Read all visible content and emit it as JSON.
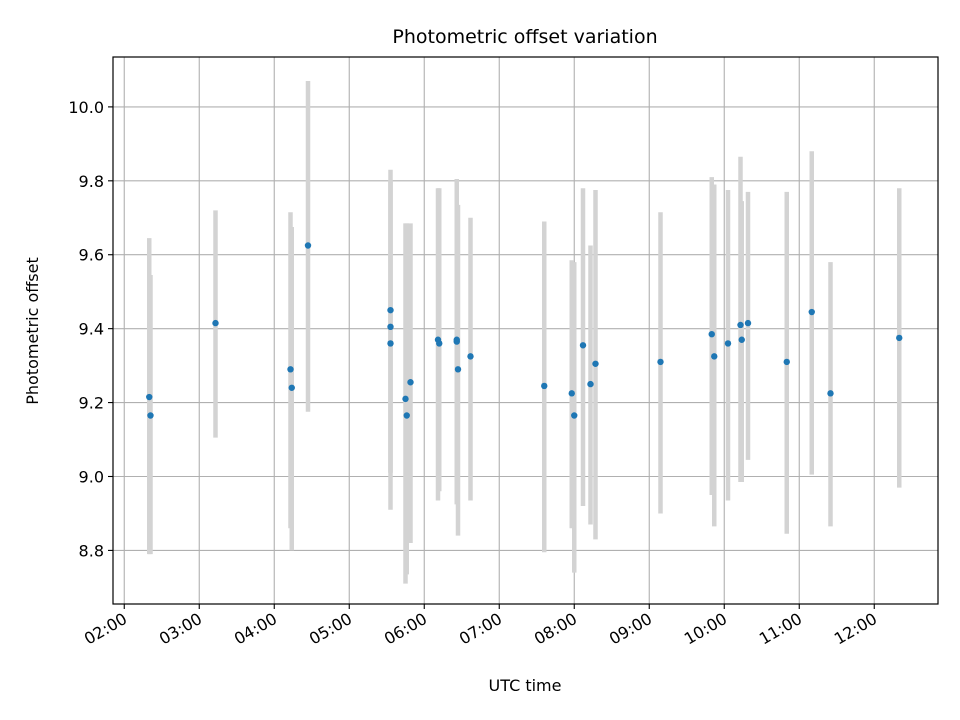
{
  "chart_data": {
    "type": "scatter",
    "title": "Photometric offset variation",
    "xlabel": "UTC time",
    "ylabel": "Photometric offset",
    "xlim": [
      "01:51",
      "12:51"
    ],
    "ylim": [
      8.655,
      10.135
    ],
    "x_ticks": [
      "02:00",
      "03:00",
      "04:00",
      "05:00",
      "06:00",
      "07:00",
      "08:00",
      "09:00",
      "10:00",
      "11:00",
      "12:00"
    ],
    "y_ticks": [
      "8.8",
      "9.0",
      "9.2",
      "9.4",
      "9.6",
      "9.8",
      "10.0"
    ],
    "grid": true,
    "colors": {
      "points": "#1f77b4",
      "error_bars": "#d3d3d3",
      "grid": "#b0b0b0"
    },
    "series": [
      {
        "points": [
          {
            "x": "02:20",
            "y": 9.215,
            "err_low": 8.79,
            "err_high": 9.645
          },
          {
            "x": "02:21",
            "y": 9.165,
            "err_low": 8.79,
            "err_high": 9.545
          },
          {
            "x": "03:13",
            "y": 9.415,
            "err_low": 9.105,
            "err_high": 9.72
          },
          {
            "x": "04:13",
            "y": 9.29,
            "err_low": 8.86,
            "err_high": 9.715
          },
          {
            "x": "04:14",
            "y": 9.24,
            "err_low": 8.8,
            "err_high": 9.675
          },
          {
            "x": "04:27",
            "y": 9.625,
            "err_low": 9.175,
            "err_high": 10.07
          },
          {
            "x": "05:33",
            "y": 9.45,
            "err_low": 9.01,
            "err_high": 9.83
          },
          {
            "x": "05:33",
            "y": 9.405,
            "err_low": 9.01,
            "err_high": 9.8
          },
          {
            "x": "05:33",
            "y": 9.36,
            "err_low": 8.91,
            "err_high": 9.8
          },
          {
            "x": "05:45",
            "y": 9.21,
            "err_low": 8.71,
            "err_high": 9.685
          },
          {
            "x": "05:46",
            "y": 9.165,
            "err_low": 8.735,
            "err_high": 9.685
          },
          {
            "x": "05:49",
            "y": 9.255,
            "err_low": 8.82,
            "err_high": 9.685
          },
          {
            "x": "06:11",
            "y": 9.37,
            "err_low": 8.935,
            "err_high": 9.78
          },
          {
            "x": "06:12",
            "y": 9.36,
            "err_low": 8.96,
            "err_high": 9.78
          },
          {
            "x": "06:26",
            "y": 9.37,
            "err_low": 8.925,
            "err_high": 9.805
          },
          {
            "x": "06:26",
            "y": 9.365,
            "err_low": 8.925,
            "err_high": 9.805
          },
          {
            "x": "06:27",
            "y": 9.29,
            "err_low": 8.84,
            "err_high": 9.735
          },
          {
            "x": "06:37",
            "y": 9.325,
            "err_low": 8.935,
            "err_high": 9.7
          },
          {
            "x": "07:36",
            "y": 9.245,
            "err_low": 8.795,
            "err_high": 9.69
          },
          {
            "x": "07:58",
            "y": 9.225,
            "err_low": 8.86,
            "err_high": 9.585
          },
          {
            "x": "08:00",
            "y": 9.165,
            "err_low": 8.74,
            "err_high": 9.58
          },
          {
            "x": "08:07",
            "y": 9.355,
            "err_low": 8.92,
            "err_high": 9.78
          },
          {
            "x": "08:13",
            "y": 9.25,
            "err_low": 8.87,
            "err_high": 9.625
          },
          {
            "x": "08:17",
            "y": 9.305,
            "err_low": 8.83,
            "err_high": 9.775
          },
          {
            "x": "09:09",
            "y": 9.31,
            "err_low": 8.9,
            "err_high": 9.715
          },
          {
            "x": "09:50",
            "y": 9.385,
            "err_low": 8.95,
            "err_high": 9.81
          },
          {
            "x": "09:52",
            "y": 9.325,
            "err_low": 8.865,
            "err_high": 9.79
          },
          {
            "x": "10:03",
            "y": 9.36,
            "err_low": 8.935,
            "err_high": 9.775
          },
          {
            "x": "10:13",
            "y": 9.41,
            "err_low": 8.985,
            "err_high": 9.865
          },
          {
            "x": "10:14",
            "y": 9.37,
            "err_low": 8.985,
            "err_high": 9.745
          },
          {
            "x": "10:19",
            "y": 9.415,
            "err_low": 9.045,
            "err_high": 9.77
          },
          {
            "x": "10:50",
            "y": 9.31,
            "err_low": 8.845,
            "err_high": 9.77
          },
          {
            "x": "11:10",
            "y": 9.445,
            "err_low": 9.005,
            "err_high": 9.88
          },
          {
            "x": "11:25",
            "y": 9.225,
            "err_low": 8.865,
            "err_high": 9.58
          },
          {
            "x": "12:20",
            "y": 9.375,
            "err_low": 8.97,
            "err_high": 9.78
          }
        ]
      }
    ]
  }
}
